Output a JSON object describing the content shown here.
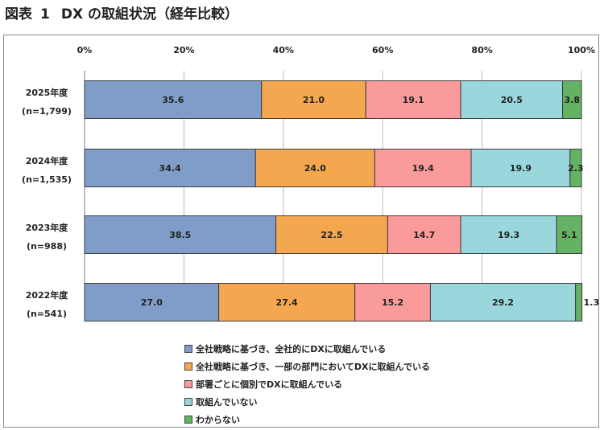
{
  "header": {
    "label": "図表",
    "number": "1",
    "title": "DX の取組状況（経年比較）"
  },
  "chart_data": {
    "type": "bar",
    "orientation": "horizontal",
    "stacked": true,
    "percent_axis": true,
    "xlim": [
      0,
      100
    ],
    "x_ticks": [
      "0%",
      "20%",
      "40%",
      "60%",
      "80%",
      "100%"
    ],
    "grid": true,
    "legend_position": "bottom",
    "categories": [
      [
        "2025年度",
        "(n=1,799)"
      ],
      [
        "2024年度",
        "(n=1,535)"
      ],
      [
        "2023年度",
        "(n=988)"
      ],
      [
        "2022年度",
        "(n=541)"
      ]
    ],
    "series": [
      {
        "name": "全社戦略に基づき、全社的にDXに取組んでいる",
        "color": "#7f9dc8",
        "values": [
          35.6,
          34.4,
          38.5,
          27.0
        ]
      },
      {
        "name": "全社戦略に基づき、一部の部門においてDXに取組んでいる",
        "color": "#f4a74e",
        "values": [
          21.0,
          24.0,
          22.5,
          27.4
        ]
      },
      {
        "name": "部署ごとに個別でDXに取組んでいる",
        "color": "#fb9a9a",
        "values": [
          19.1,
          19.4,
          14.7,
          15.2
        ]
      },
      {
        "name": "取組んでいない",
        "color": "#99d7dc",
        "values": [
          20.5,
          19.9,
          19.3,
          29.2
        ]
      },
      {
        "name": "わからない",
        "color": "#64b364",
        "values": [
          3.8,
          2.3,
          5.1,
          1.3
        ]
      }
    ],
    "value_labels": [
      [
        "35.6",
        "21.0",
        "19.1",
        "20.5",
        "3.8"
      ],
      [
        "34.4",
        "24.0",
        "19.4",
        "19.9",
        "2.3"
      ],
      [
        "38.5",
        "22.5",
        "14.7",
        "19.3",
        "5.1"
      ],
      [
        "27.0",
        "27.4",
        "15.2",
        "29.2",
        "1.3"
      ]
    ]
  }
}
